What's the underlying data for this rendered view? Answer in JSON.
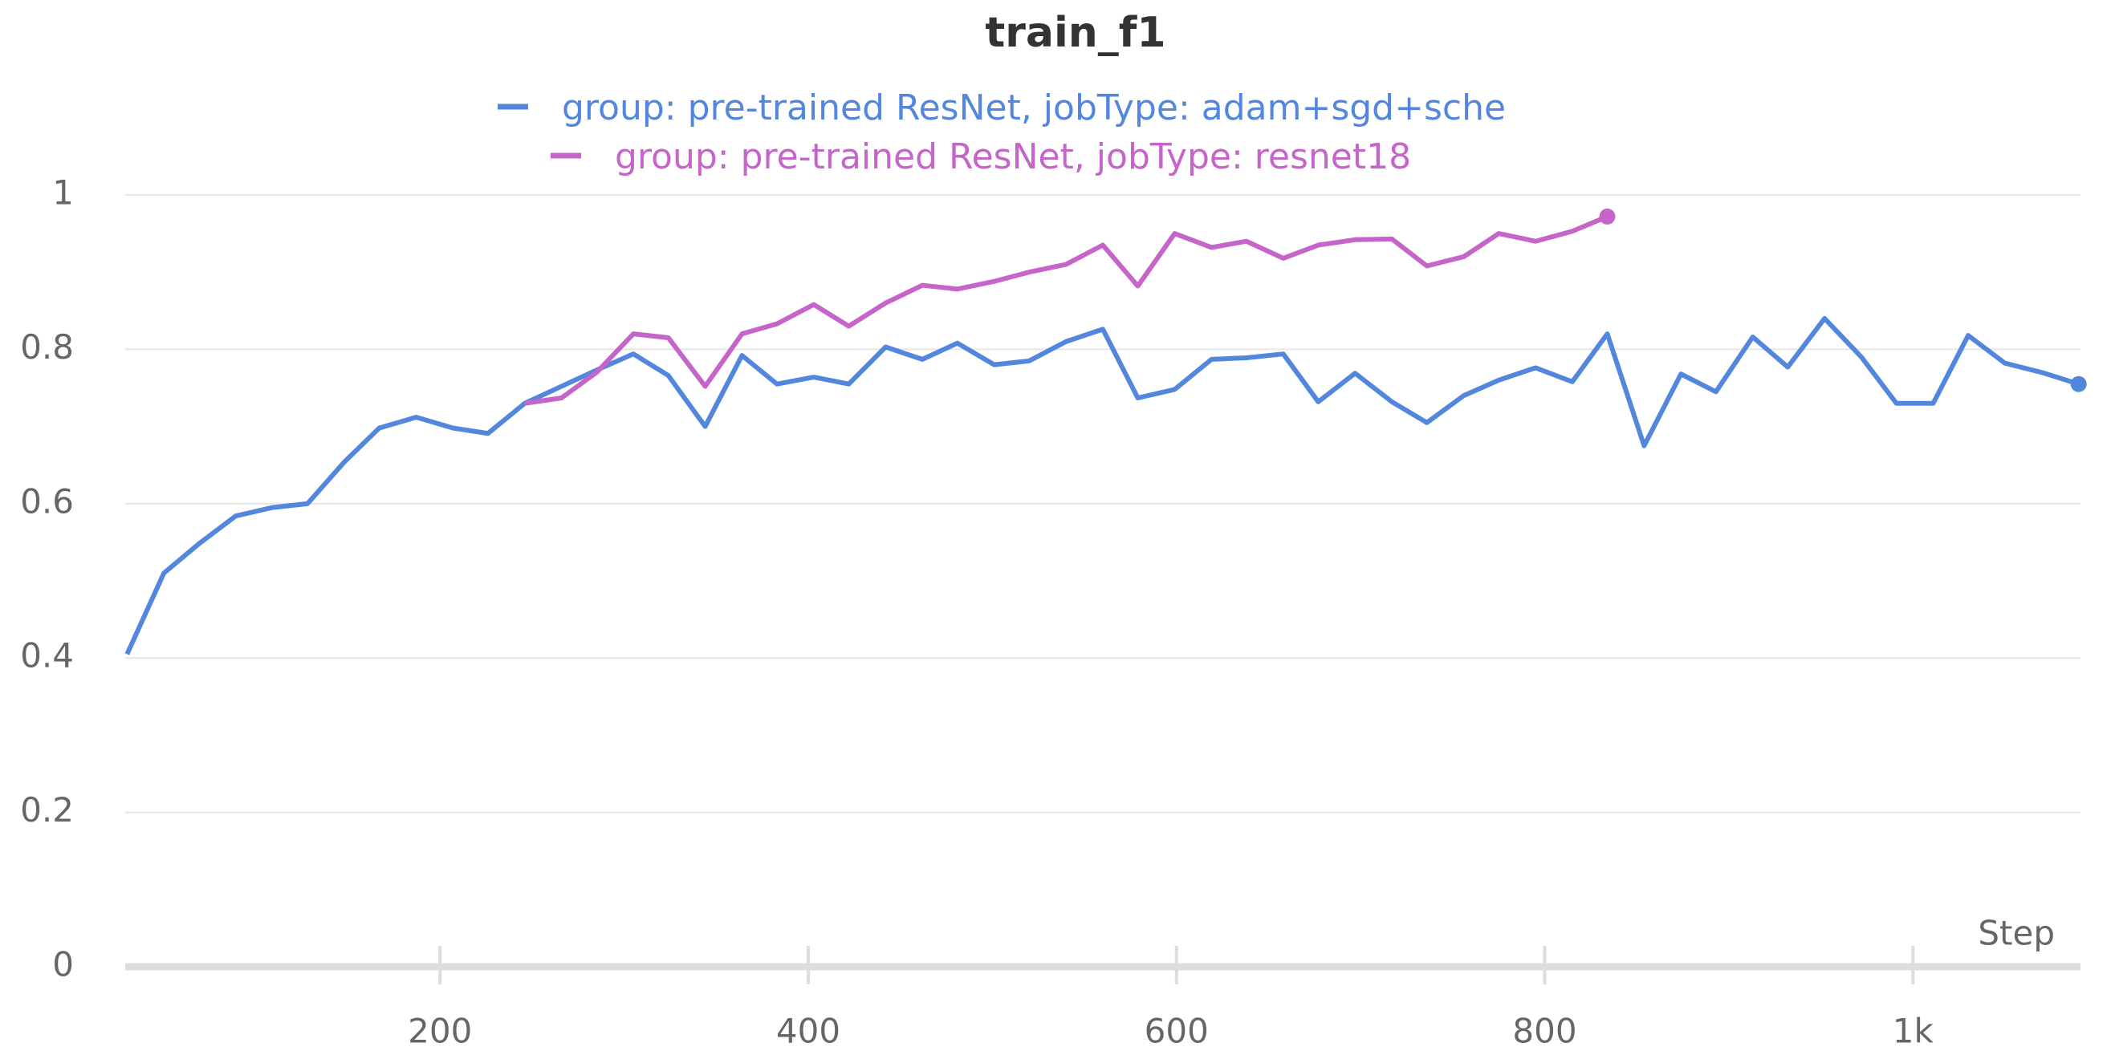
{
  "chart_data": {
    "type": "line",
    "title": "train_f1",
    "xlabel": "Step",
    "xlim": [
      29,
      1091
    ],
    "ylim": [
      0,
      1
    ],
    "xticks": [
      200,
      400,
      600,
      800,
      {
        "value": 1000,
        "label": "1k"
      }
    ],
    "yticks": [
      0,
      0.2,
      0.4,
      0.6,
      0.8,
      1
    ],
    "grid": true,
    "series": [
      {
        "name": "group: pre-trained ResNet, jobType: adam+sgd+sche",
        "color": "#5387dd",
        "x": [
          30,
          50,
          69,
          89,
          109,
          128,
          148,
          167,
          187,
          207,
          226,
          246,
          265,
          285,
          305,
          324,
          344,
          364,
          383,
          403,
          422,
          442,
          462,
          481,
          501,
          520,
          540,
          560,
          579,
          599,
          619,
          638,
          658,
          677,
          697,
          717,
          736,
          756,
          775,
          795,
          815,
          834,
          854,
          874,
          893,
          913,
          932,
          952,
          972,
          991,
          1011,
          1030,
          1050,
          1070,
          1090
        ],
        "values": [
          0.405,
          0.51,
          0.548,
          0.584,
          0.595,
          0.6,
          0.654,
          0.698,
          0.712,
          0.698,
          0.691,
          0.73,
          0.751,
          0.773,
          0.794,
          0.766,
          0.7,
          0.792,
          0.755,
          0.764,
          0.755,
          0.803,
          0.787,
          0.808,
          0.78,
          0.785,
          0.81,
          0.826,
          0.737,
          0.748,
          0.787,
          0.789,
          0.794,
          0.732,
          0.769,
          0.732,
          0.705,
          0.74,
          0.76,
          0.776,
          0.758,
          0.82,
          0.675,
          0.768,
          0.745,
          0.816,
          0.777,
          0.84,
          0.79,
          0.73,
          0.73,
          0.818,
          0.782,
          0.77,
          0.755
        ]
      },
      {
        "name": "group: pre-trained ResNet, jobType: resnet18",
        "color": "#c565c9",
        "x": [
          246,
          266,
          285,
          305,
          324,
          344,
          364,
          383,
          403,
          422,
          442,
          462,
          481,
          501,
          520,
          540,
          560,
          579,
          599,
          619,
          638,
          658,
          677,
          697,
          717,
          736,
          756,
          775,
          795,
          815,
          834
        ],
        "values": [
          0.73,
          0.737,
          0.77,
          0.82,
          0.815,
          0.752,
          0.82,
          0.833,
          0.858,
          0.83,
          0.86,
          0.883,
          0.878,
          0.888,
          0.9,
          0.91,
          0.935,
          0.882,
          0.95,
          0.932,
          0.94,
          0.918,
          0.935,
          0.942,
          0.943,
          0.908,
          0.92,
          0.95,
          0.94,
          0.953,
          0.972
        ]
      }
    ]
  }
}
